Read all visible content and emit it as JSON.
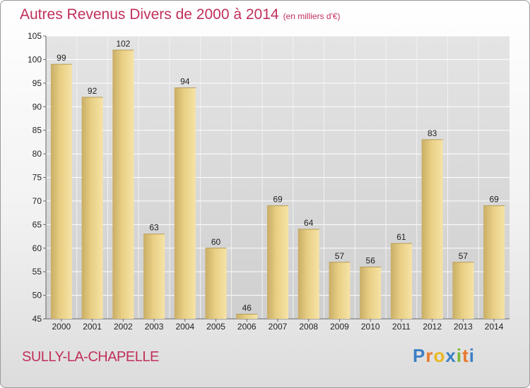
{
  "chart_data": {
    "type": "bar",
    "title": "Autres Revenus Divers de 2000 à 2014",
    "subtitle": "(en milliers d'€)",
    "categories": [
      "2000",
      "2001",
      "2002",
      "2003",
      "2004",
      "2005",
      "2006",
      "2007",
      "2008",
      "2009",
      "2010",
      "2011",
      "2012",
      "2013",
      "2014"
    ],
    "values": [
      99,
      92,
      102,
      63,
      94,
      60,
      46,
      69,
      64,
      57,
      56,
      61,
      83,
      57,
      69
    ],
    "ylim": [
      45,
      105
    ],
    "yticks": [
      45,
      50,
      55,
      60,
      65,
      70,
      75,
      80,
      85,
      90,
      95,
      100,
      105
    ],
    "grid": true,
    "bar_color": "#e8cf84"
  },
  "commune": "SULLY-LA-CHAPELLE",
  "logo": {
    "letters": [
      "P",
      "r",
      "o",
      "x",
      "i",
      "t",
      "i"
    ],
    "colors": [
      "#3b7fc4",
      "#e8792b",
      "#e8b820",
      "#3b7fc4",
      "#7cb832",
      "#e8792b",
      "#3b7fc4"
    ]
  }
}
